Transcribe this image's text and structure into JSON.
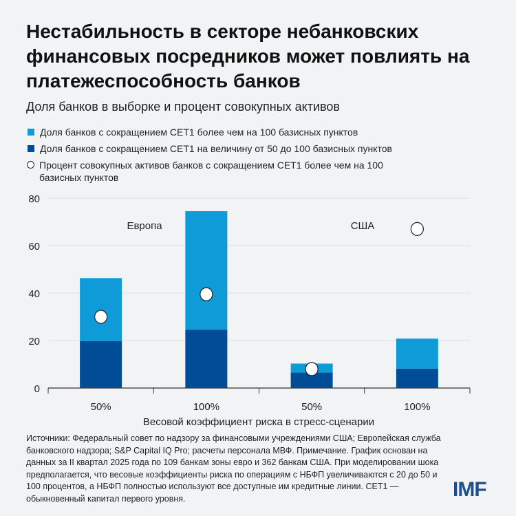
{
  "title": "Нестабильность в секторе небанковских финансовых посредников может повлиять на платежеспособность банков",
  "subtitle": "Доля банков в выборке и процент совокупных активов",
  "colors": {
    "light": "#0f9ad8",
    "dark": "#004c97",
    "grid": "#dfe1e4"
  },
  "chart_data": {
    "type": "bar",
    "stacked": true,
    "groups": [
      "Европа",
      "США"
    ],
    "categories": [
      "50%",
      "100%",
      "50%",
      "100%"
    ],
    "category_groups": [
      "Европа",
      "Европа",
      "США",
      "США"
    ],
    "xlabel": "Весовой коэффициент риска в стресс-сценарии",
    "ylabel": "",
    "ylim": [
      0,
      80
    ],
    "yticks": [
      "0",
      "20",
      "40",
      "60",
      "80"
    ],
    "grid": true,
    "legend_placement": "top-left",
    "series": [
      {
        "name": "Доля банков с сокращением CET1 на величину от 50 до 100 базисных пунктов",
        "type": "bar",
        "color": "#004c97",
        "values": [
          19.8,
          24.5,
          6.5,
          8.2
        ]
      },
      {
        "name": "Доля банков с сокращением CET1 более чем на 100 базисных пунктов",
        "type": "bar",
        "color": "#0f9ad8",
        "values": [
          26.5,
          50.0,
          3.8,
          12.6
        ]
      },
      {
        "name": "Процент совокупных активов банков с сокращением CET1 более чем на 100 базисных пунктов",
        "type": "scatter",
        "marker": "open-circle",
        "values": [
          30,
          39.5,
          8,
          67
        ]
      }
    ]
  },
  "legend": [
    "Доля банков с сокращением CET1 более чем на 100 базисных пунктов",
    "Доля банков с сокращением CET1 на величину от 50 до 100 базисных пунктов",
    "Процент совокупных активов банков с сокращением CET1 более чем на 100 базисных пунктов"
  ],
  "notes": "Источники: Федеральный совет по надзору за финансовыми учреждениями США; Европейская служба банковского надзора; S&P Capital IQ Pro; расчеты персонала МВФ. Примечание. График основан на данных за II квартал 2025 года по 109 банкам зоны евро и 362 банкам США. При моделировании шока предполагается, что весовые коэффициенты риска по операциям с НБФП увеличиваются с 20 до 50 и 100 процентов, а НБФП полностью используют все доступные им кредитные линии. CET1 — обыкновенный капитал первого уровня.",
  "logo": "IMF"
}
